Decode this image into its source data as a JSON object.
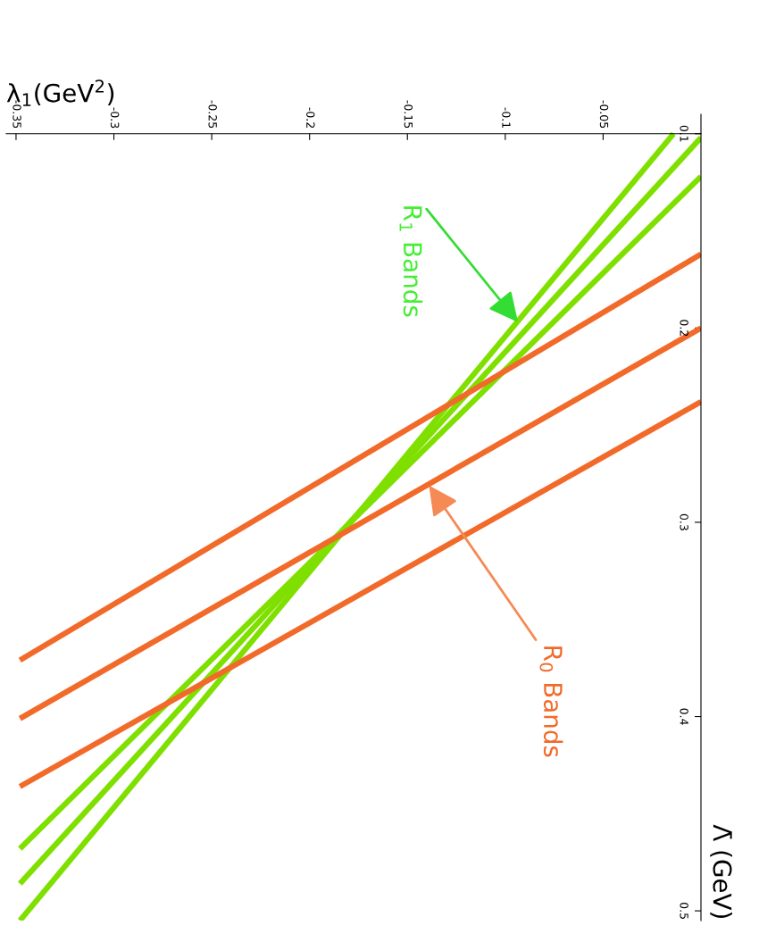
{
  "chart_data": {
    "type": "line",
    "xlabel": "λ$_{1}$(GeV$^{2}$)",
    "ylabel": "Λ̄ (GeV)",
    "xlim": [
      -0.355,
      0.0
    ],
    "xticks": [
      -0.35,
      -0.3,
      -0.25,
      -0.2,
      -0.15,
      -0.1,
      -0.05
    ],
    "ylim": [
      0.505,
      0.09
    ],
    "yticks": [
      0.1,
      0.2,
      0.3,
      0.4,
      0.5
    ],
    "grid": false,
    "legend": false,
    "marker": "none",
    "line_style": "solid",
    "series": [
      {
        "color": "#7fe000",
        "x": [
          -0.014,
          -0.348
        ],
        "values": [
          0.1,
          0.505
        ]
      },
      {
        "color": "#7fe000",
        "x": [
          0.0,
          -0.348
        ],
        "values": [
          0.102,
          0.486
        ]
      },
      {
        "color": "#7fe000",
        "x": [
          0.0,
          -0.348
        ],
        "values": [
          0.122,
          0.468
        ]
      },
      {
        "color": "#f26a2a",
        "x": [
          0.0,
          -0.348
        ],
        "values": [
          0.162,
          0.371
        ]
      },
      {
        "color": "#f26a2a",
        "x": [
          0.0,
          -0.348
        ],
        "values": [
          0.2,
          0.401
        ]
      },
      {
        "color": "#f26a2a",
        "x": [
          0.0,
          -0.348
        ],
        "values": [
          0.238,
          0.436
        ]
      }
    ],
    "annotations": [
      {
        "text": "R$_{1}$ Bands",
        "x": -0.0935,
        "y": 0.197
      },
      {
        "text": "R$_{0}$ Bands",
        "x": -0.139,
        "y": 0.281
      }
    ]
  }
}
